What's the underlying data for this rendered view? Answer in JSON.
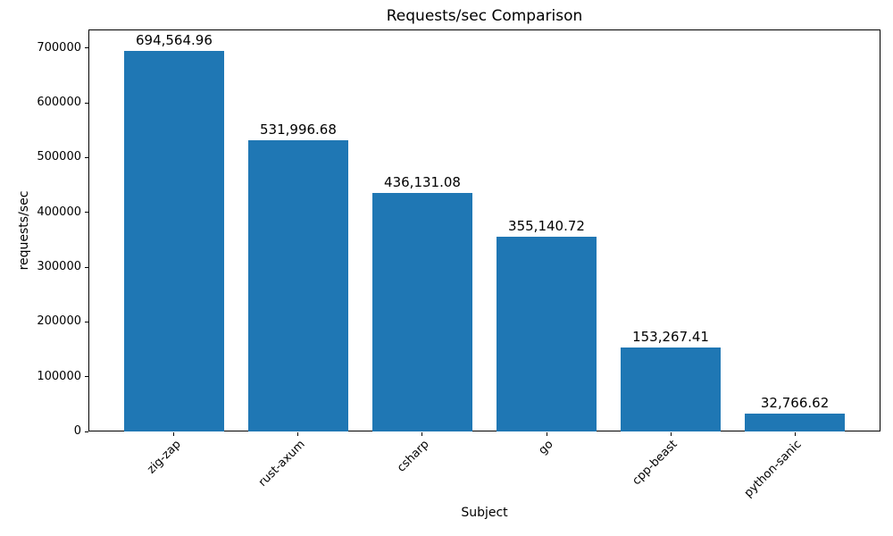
{
  "chart_data": {
    "type": "bar",
    "title": "Requests/sec Comparison",
    "xlabel": "Subject",
    "ylabel": "requests/sec",
    "categories": [
      "zig-zap",
      "rust-axum",
      "csharp",
      "go",
      "cpp-beast",
      "python-sanic"
    ],
    "values": [
      694564.96,
      531996.68,
      436131.08,
      355140.72,
      153267.41,
      32766.62
    ],
    "bar_labels": [
      "694,564.96",
      "531,996.68",
      "436,131.08",
      "355,140.72",
      "153,267.41",
      "32,766.62"
    ],
    "yticks": [
      0,
      100000,
      200000,
      300000,
      400000,
      500000,
      600000,
      700000
    ],
    "ytick_labels": [
      "0",
      "100000",
      "200000",
      "300000",
      "400000",
      "500000",
      "600000",
      "700000"
    ],
    "ylim": [
      0,
      734000
    ],
    "bar_color": "#1f77b4",
    "bar_width_fraction": 0.8,
    "x_tick_rotation": 45,
    "grid": false,
    "legend": null
  }
}
